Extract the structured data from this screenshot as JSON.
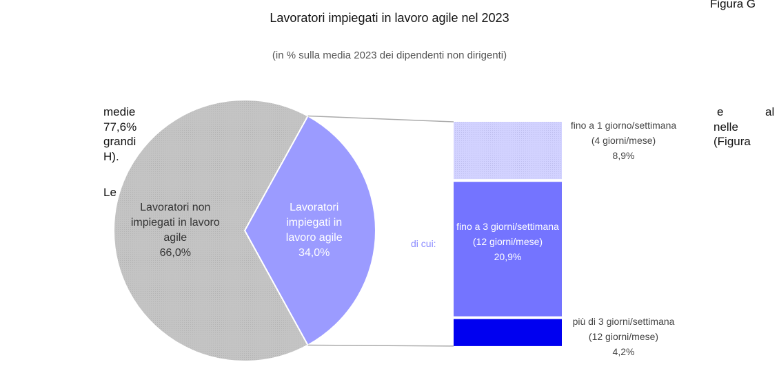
{
  "chart_data": {
    "type": "pie",
    "title": "Lavoratori impiegati in lavoro agile nel 2023",
    "subtitle": "(in % sulla media 2023 dei dipendenti non dirigenti)",
    "categories": [
      "Lavoratori non impiegati in lavoro agile",
      "Lavoratori impiegati in lavoro agile"
    ],
    "values": [
      66.0,
      34.0
    ],
    "value_labels": [
      "66,0%",
      "34,0%"
    ],
    "colors": [
      "#c6c6c6",
      "#9b9bff"
    ],
    "breakdown": {
      "label": "di cui:",
      "categories": [
        "fino a 1 giorno/settimana (4 giorni/mese)",
        "fino a 3 giorni/settimana (12 giorni/mese)",
        "più di 3 giorni/settimana (12 giorni/mese)"
      ],
      "values": [
        8.9,
        20.9,
        4.2
      ],
      "value_labels": [
        "8,9%",
        "20,9%",
        "4,2%"
      ],
      "colors": [
        "#cfcfff",
        "#7474ff",
        "#0000f0"
      ]
    }
  },
  "background_text": [
    "medie",
    "77,6%",
    "grandi",
    "H).",
    "Le",
    "e",
    "al",
    "nelle",
    "(Figura",
    "Figura G"
  ]
}
